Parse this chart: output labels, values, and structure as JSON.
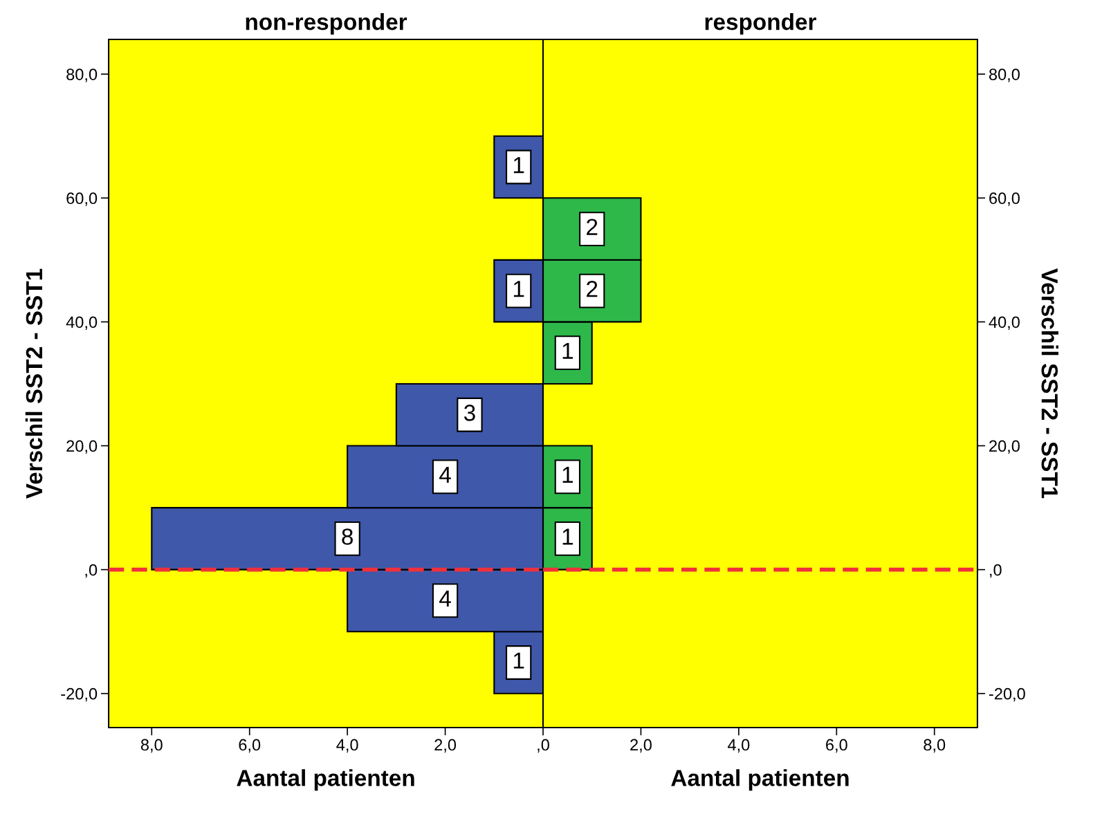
{
  "chart_data": [
    {
      "type": "histogram",
      "orientation": "horizontal",
      "title": "non-responder",
      "xlabel": "Aantal patienten",
      "ylabel": "Verschil SST2 - SST1",
      "bins": [
        -20,
        -10,
        0,
        10,
        20,
        30,
        40,
        50,
        60,
        70
      ],
      "values": [
        1,
        4,
        8,
        4,
        3,
        null,
        1,
        null,
        1
      ],
      "color": "#3f58aa",
      "value_labels": [
        "1",
        "4",
        "8",
        "4",
        "3",
        null,
        "1",
        null,
        "1"
      ],
      "xlim": [
        8.88,
        0
      ],
      "xticks": [
        {
          "value": 8,
          "label": "8,0"
        },
        {
          "value": 6,
          "label": "6,0"
        },
        {
          "value": 4,
          "label": "4,0"
        },
        {
          "value": 2,
          "label": "2,0"
        }
      ],
      "ylim": [
        -25.5,
        85.6
      ],
      "yticks": [
        {
          "value": -20,
          "label": "-20,0"
        },
        {
          "value": 0,
          "label": ",0"
        },
        {
          "value": 20,
          "label": "20,0"
        },
        {
          "value": 40,
          "label": "40,0"
        },
        {
          "value": 60,
          "label": "60,0"
        },
        {
          "value": 80,
          "label": "80,0"
        }
      ],
      "ref_lines": [
        {
          "axis": "y",
          "value": 0,
          "color": "#f0303a",
          "line_style": "dashed"
        }
      ]
    },
    {
      "type": "histogram",
      "orientation": "horizontal",
      "title": "responder",
      "xlabel": "Aantal patienten",
      "ylabel": "Verschil SST2 - SST1",
      "bins": [
        0,
        10,
        20,
        30,
        40,
        50,
        60
      ],
      "values": [
        1,
        1,
        null,
        1,
        2,
        2
      ],
      "color": "#2eb84a",
      "value_labels": [
        "1",
        "1",
        null,
        "1",
        "2",
        "2"
      ],
      "xlim": [
        0,
        8.88
      ],
      "xticks": [
        {
          "value": 0,
          "label": ",0"
        },
        {
          "value": 2,
          "label": "2,0"
        },
        {
          "value": 4,
          "label": "4,0"
        },
        {
          "value": 6,
          "label": "6,0"
        },
        {
          "value": 8,
          "label": "8,0"
        }
      ],
      "ylim": [
        -25.5,
        85.6
      ],
      "yticks": [
        {
          "value": -20,
          "label": "-20,0"
        },
        {
          "value": 0,
          "label": ",0"
        },
        {
          "value": 20,
          "label": "20,0"
        },
        {
          "value": 40,
          "label": "40,0"
        },
        {
          "value": 60,
          "label": "60,0"
        },
        {
          "value": 80,
          "label": "80,0"
        }
      ],
      "ref_lines": [
        {
          "axis": "y",
          "value": 0,
          "color": "#f0303a",
          "line_style": "dashed"
        }
      ]
    }
  ]
}
